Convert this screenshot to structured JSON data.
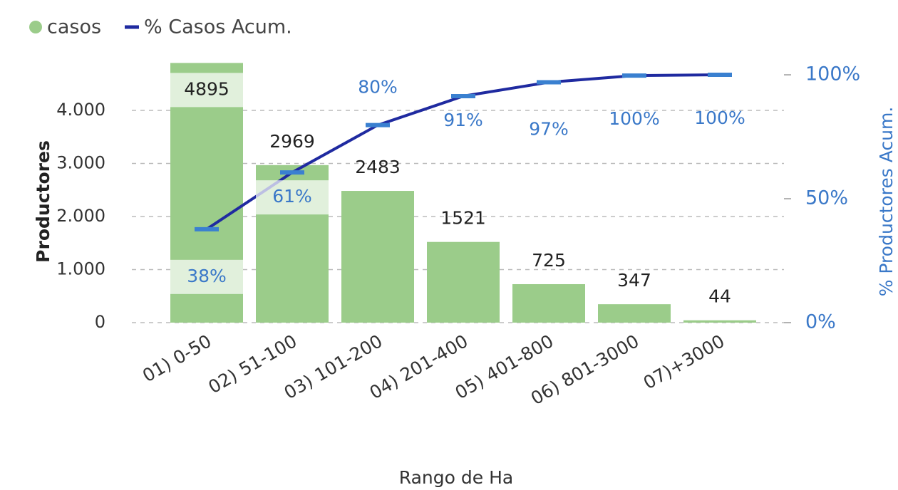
{
  "chart_data": {
    "type": "bar-line",
    "legend": "top-left",
    "x_label": "Rango de Ha",
    "y_label": "Productores",
    "y2_label": "% Productores Acum.",
    "categories": [
      "01) 0-50",
      "02) 51-100",
      "03) 101-200",
      "04) 201-400",
      "05) 401-800",
      "06) 801-3000",
      "07)+3000"
    ],
    "series": [
      {
        "name": "casos",
        "color": "#9bcc8a",
        "values": [
          4895,
          2969,
          2483,
          1521,
          725,
          347,
          44
        ]
      },
      {
        "name": "% Casos Acum.",
        "color": "#1f2aa0",
        "axis": "y2",
        "values": [
          37.7,
          60.6,
          79.7,
          91.4,
          97.0,
          99.7,
          100
        ],
        "value_labels": [
          "38%",
          "61%",
          "80%",
          "91%",
          "97%",
          "100%",
          "100%"
        ]
      }
    ],
    "ylim": [
      0,
      4900
    ],
    "yticks": [
      0,
      {
        "value": 1000,
        "label": "1.000"
      },
      {
        "value": 2000,
        "label": "2.000"
      },
      {
        "value": 3000,
        "label": "3.000"
      },
      {
        "value": 4000,
        "label": "4.000"
      }
    ],
    "y2lim": [
      0,
      104.9
    ],
    "y2ticks": [
      {
        "value": 0,
        "label": "0%"
      },
      {
        "value": 50,
        "label": "50%"
      },
      {
        "value": 100,
        "label": "100%"
      }
    ],
    "grid": true
  }
}
